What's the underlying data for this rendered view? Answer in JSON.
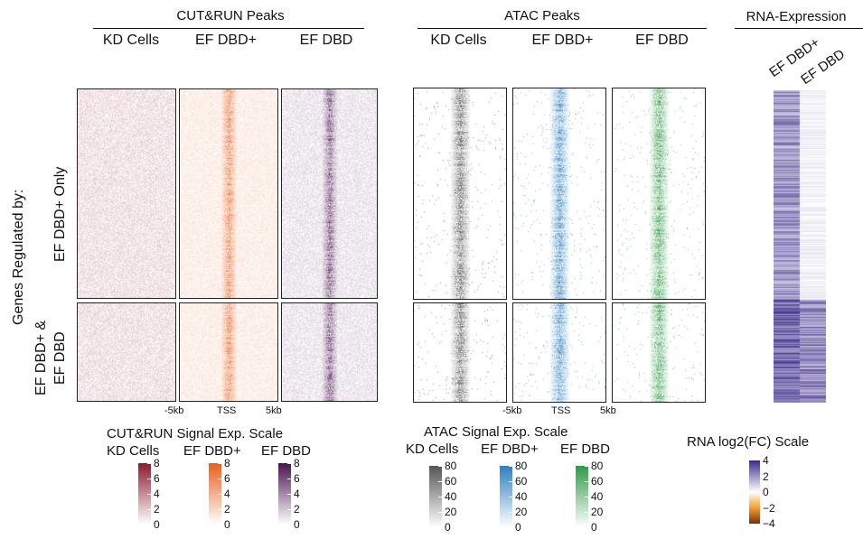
{
  "headers": {
    "cutrun": "CUT&RUN Peaks",
    "atac": "ATAC Peaks",
    "rna": "RNA-Expression"
  },
  "columns": {
    "cutrun": [
      "KD Cells",
      "EF DBD+",
      "EF DBD"
    ],
    "atac": [
      "KD Cells",
      "EF DBD+",
      "EF DBD"
    ],
    "rna": [
      "EF DBD+",
      "EF DBD"
    ]
  },
  "row_group_title": "Genes Regulated by:",
  "row_groups": {
    "top": "EF DBD+ Only",
    "bottom_line1": "EF DBD+ &",
    "bottom_line2": "EF DBD"
  },
  "x_axis": {
    "left": "-5kb",
    "center": "TSS",
    "right": "5kb"
  },
  "scales": {
    "cutrun_title": "CUT&RUN Signal Exp. Scale",
    "atac_title": "ATAC Signal Exp. Scale",
    "rna_title": "RNA log2(FC) Scale",
    "cutrun_ticks": [
      "8",
      "6",
      "4",
      "2",
      "0"
    ],
    "atac_ticks": [
      "80",
      "60",
      "40",
      "20",
      "0"
    ],
    "rna_ticks": [
      "4",
      "2",
      "0",
      "−2",
      "−4"
    ]
  },
  "colors": {
    "cutrun_kd": "#8b1a2e",
    "cutrun_dbdplus": "#e8601c",
    "cutrun_dbd": "#4b1450",
    "atac_kd": "#555555",
    "atac_dbdplus": "#2f7fc1",
    "atac_dbd": "#2e9a48",
    "rna_pos": "#3b2a8a",
    "rna_neg": "#7a2e0e"
  }
}
